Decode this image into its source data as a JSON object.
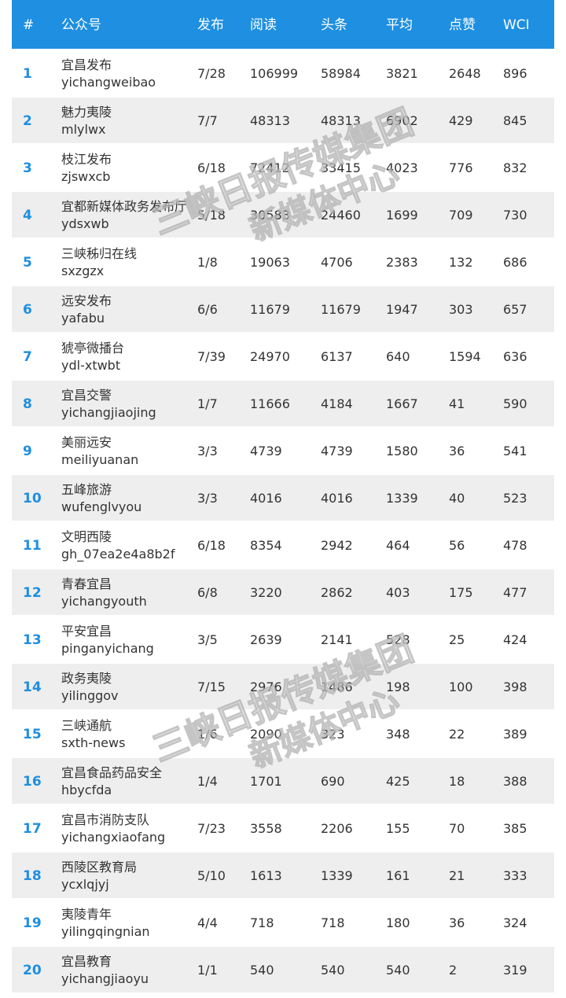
{
  "header": {
    "rank": "#",
    "name": "公众号",
    "publish": "发布",
    "read": "阅读",
    "headline": "头条",
    "average": "平均",
    "like": "点赞",
    "wci": "WCI"
  },
  "rows": [
    {
      "rank": "1",
      "name": "宜昌发布",
      "id": "yichangweibao",
      "publish": "7/28",
      "read": "106999",
      "headline": "58984",
      "average": "3821",
      "like": "2648",
      "wci": "896"
    },
    {
      "rank": "2",
      "name": "魅力夷陵",
      "id": "mlylwx",
      "publish": "7/7",
      "read": "48313",
      "headline": "48313",
      "average": "6902",
      "like": "429",
      "wci": "845"
    },
    {
      "rank": "3",
      "name": "枝江发布",
      "id": "zjswxcb",
      "publish": "6/18",
      "read": "72412",
      "headline": "33415",
      "average": "4023",
      "like": "776",
      "wci": "832"
    },
    {
      "rank": "4",
      "name": "宜都新媒体政务发布厅",
      "id": "ydsxwb",
      "publish": "5/18",
      "read": "30583",
      "headline": "24460",
      "average": "1699",
      "like": "709",
      "wci": "730"
    },
    {
      "rank": "5",
      "name": "三峡秭归在线",
      "id": "sxzgzx",
      "publish": "1/8",
      "read": "19063",
      "headline": "4706",
      "average": "2383",
      "like": "132",
      "wci": "686"
    },
    {
      "rank": "6",
      "name": "远安发布",
      "id": "yafabu",
      "publish": "6/6",
      "read": "11679",
      "headline": "11679",
      "average": "1947",
      "like": "303",
      "wci": "657"
    },
    {
      "rank": "7",
      "name": "猇亭微播台",
      "id": "ydl-xtwbt",
      "publish": "7/39",
      "read": "24970",
      "headline": "6137",
      "average": "640",
      "like": "1594",
      "wci": "636"
    },
    {
      "rank": "8",
      "name": "宜昌交警",
      "id": "yichangjiaojing",
      "publish": "1/7",
      "read": "11666",
      "headline": "4184",
      "average": "1667",
      "like": "41",
      "wci": "590"
    },
    {
      "rank": "9",
      "name": "美丽远安",
      "id": "meiliyuanan",
      "publish": "3/3",
      "read": "4739",
      "headline": "4739",
      "average": "1580",
      "like": "36",
      "wci": "541"
    },
    {
      "rank": "10",
      "name": "五峰旅游",
      "id": "wufenglvyou",
      "publish": "3/3",
      "read": "4016",
      "headline": "4016",
      "average": "1339",
      "like": "40",
      "wci": "523"
    },
    {
      "rank": "11",
      "name": "文明西陵",
      "id": "gh_07ea2e4a8b2f",
      "publish": "6/18",
      "read": "8354",
      "headline": "2942",
      "average": "464",
      "like": "56",
      "wci": "478"
    },
    {
      "rank": "12",
      "name": "青春宜昌",
      "id": "yichangyouth",
      "publish": "6/8",
      "read": "3220",
      "headline": "2862",
      "average": "403",
      "like": "175",
      "wci": "477"
    },
    {
      "rank": "13",
      "name": "平安宜昌",
      "id": "pinganyichang",
      "publish": "3/5",
      "read": "2639",
      "headline": "2141",
      "average": "528",
      "like": "25",
      "wci": "424"
    },
    {
      "rank": "14",
      "name": "政务夷陵",
      "id": "yilinggov",
      "publish": "7/15",
      "read": "2976",
      "headline": "1486",
      "average": "198",
      "like": "100",
      "wci": "398"
    },
    {
      "rank": "15",
      "name": "三峡通航",
      "id": "sxth-news",
      "publish": "1/6",
      "read": "2090",
      "headline": "323",
      "average": "348",
      "like": "22",
      "wci": "389"
    },
    {
      "rank": "16",
      "name": "宜昌食品药品安全",
      "id": "hbycfda",
      "publish": "1/4",
      "read": "1701",
      "headline": "690",
      "average": "425",
      "like": "18",
      "wci": "388"
    },
    {
      "rank": "17",
      "name": "宜昌市消防支队",
      "id": "yichangxiaofang",
      "publish": "7/23",
      "read": "3558",
      "headline": "2206",
      "average": "155",
      "like": "70",
      "wci": "385"
    },
    {
      "rank": "18",
      "name": "西陵区教育局",
      "id": "ycxlqjyj",
      "publish": "5/10",
      "read": "1613",
      "headline": "1339",
      "average": "161",
      "like": "21",
      "wci": "333"
    },
    {
      "rank": "19",
      "name": "夷陵青年",
      "id": "yilingqingnian",
      "publish": "4/4",
      "read": "718",
      "headline": "718",
      "average": "180",
      "like": "36",
      "wci": "324"
    },
    {
      "rank": "20",
      "name": "宜昌教育",
      "id": "yichangjiaoyu",
      "publish": "1/1",
      "read": "540",
      "headline": "540",
      "average": "540",
      "like": "2",
      "wci": "319"
    }
  ],
  "watermark": {
    "line1": "三峡日报传媒集团",
    "line2": "新媒体中心"
  }
}
